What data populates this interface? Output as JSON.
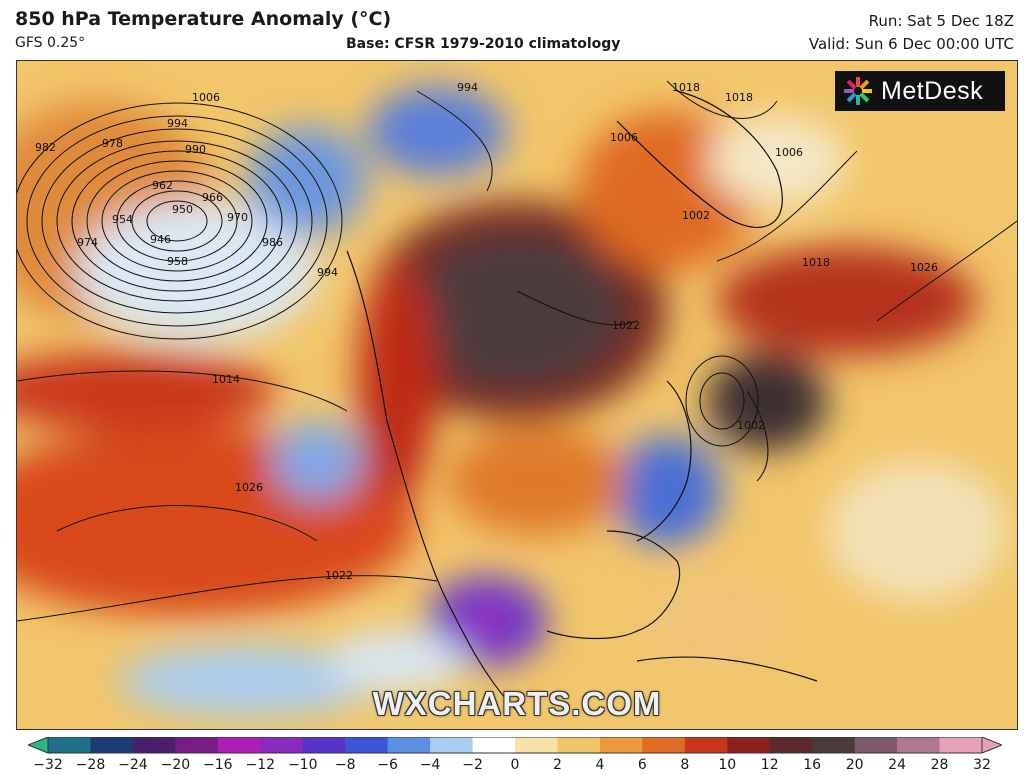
{
  "header": {
    "title": "850 hPa Temperature Anomaly (°C)",
    "model": "GFS 0.25°",
    "base": "Base: CFSR 1979-2010 climatology",
    "run": "Run: Sat 5 Dec 18Z",
    "valid": "Valid: Sun 6 Dec 00:00 UTC"
  },
  "brand": {
    "name": "MetDesk",
    "icon": "metdesk-logo-icon"
  },
  "watermark": "WXCHARTS.COM",
  "isobar_labels": [
    "1006",
    "994",
    "990",
    "982",
    "978",
    "962",
    "966",
    "970",
    "954",
    "950",
    "946",
    "958",
    "974",
    "986",
    "994",
    "1014",
    "1026",
    "1022",
    "994",
    "1018",
    "1006",
    "1018",
    "1006",
    "1002",
    "1018",
    "1026",
    "1022",
    "1002"
  ],
  "colorbar": {
    "ticks": [
      "−32",
      "−28",
      "−24",
      "−20",
      "−16",
      "−12",
      "−10",
      "−8",
      "−6",
      "−4",
      "−2",
      "0",
      "2",
      "4",
      "6",
      "8",
      "10",
      "12",
      "16",
      "20",
      "24",
      "28",
      "32"
    ],
    "colors": [
      "#2bb58a",
      "#1e6f8a",
      "#1c3a78",
      "#4a1f6e",
      "#7a1b8a",
      "#b01eb5",
      "#8b2ac0",
      "#5533c8",
      "#3b55d6",
      "#5b8fe0",
      "#a8cdf0",
      "#ffffff",
      "#f7e3a8",
      "#f2c56a",
      "#eb9b3c",
      "#e06b23",
      "#c9371a",
      "#8f1f1a",
      "#5c2a2a",
      "#4a3a3a",
      "#7d5a6a",
      "#b07890",
      "#e6a0b8"
    ]
  }
}
